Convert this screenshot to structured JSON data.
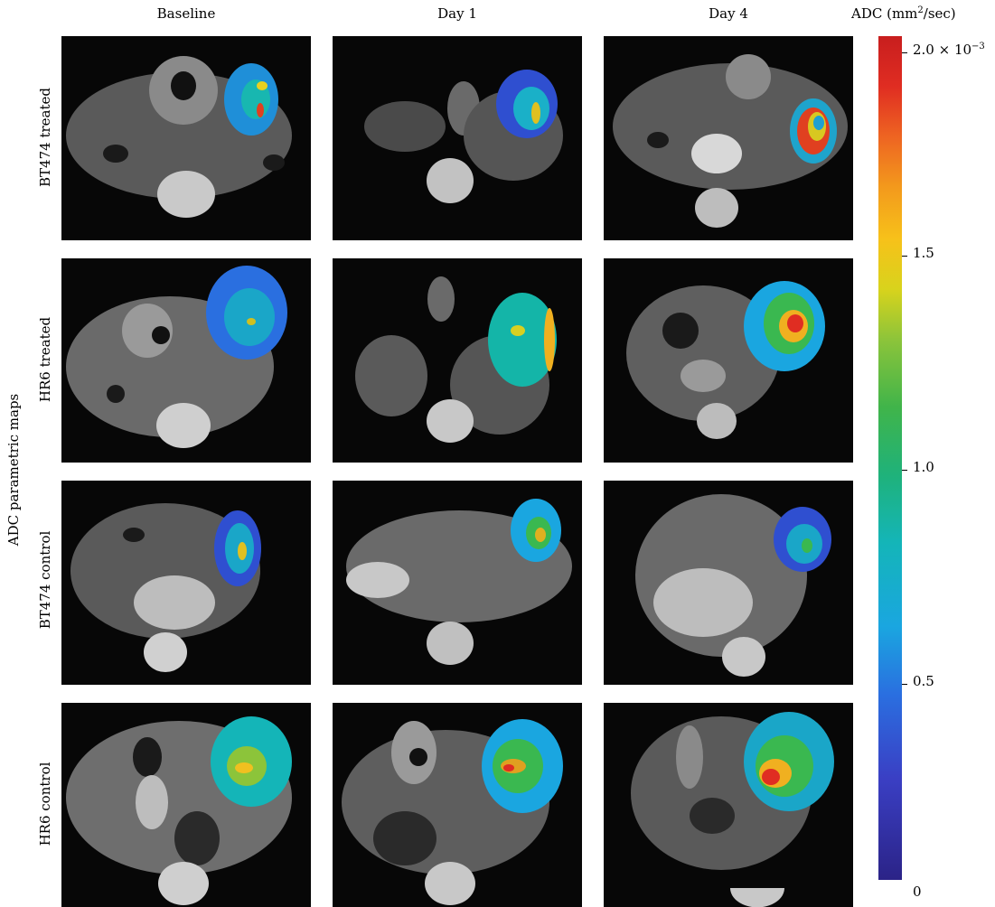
{
  "columns": [
    "Baseline",
    "Day 1",
    "Day 4"
  ],
  "rows": [
    "BT474 treated",
    "HR6 treated",
    "BT474 control",
    "HR6 control"
  ],
  "y_title": "ADC parametric maps",
  "colorbar": {
    "title_prefix": "ADC (mm",
    "title_exp": "2",
    "title_suffix": "/sec)",
    "top_label": "2.0 × 10",
    "top_exp": "−3",
    "ticks": [
      {
        "label": "1.5",
        "value": 1.5
      },
      {
        "label": "1.0",
        "value": 1.0
      },
      {
        "label": "0.5",
        "value": 0.5
      },
      {
        "label": "0",
        "value": 0.0
      }
    ],
    "range": [
      0,
      2.0
    ],
    "colormap": "jet"
  }
}
